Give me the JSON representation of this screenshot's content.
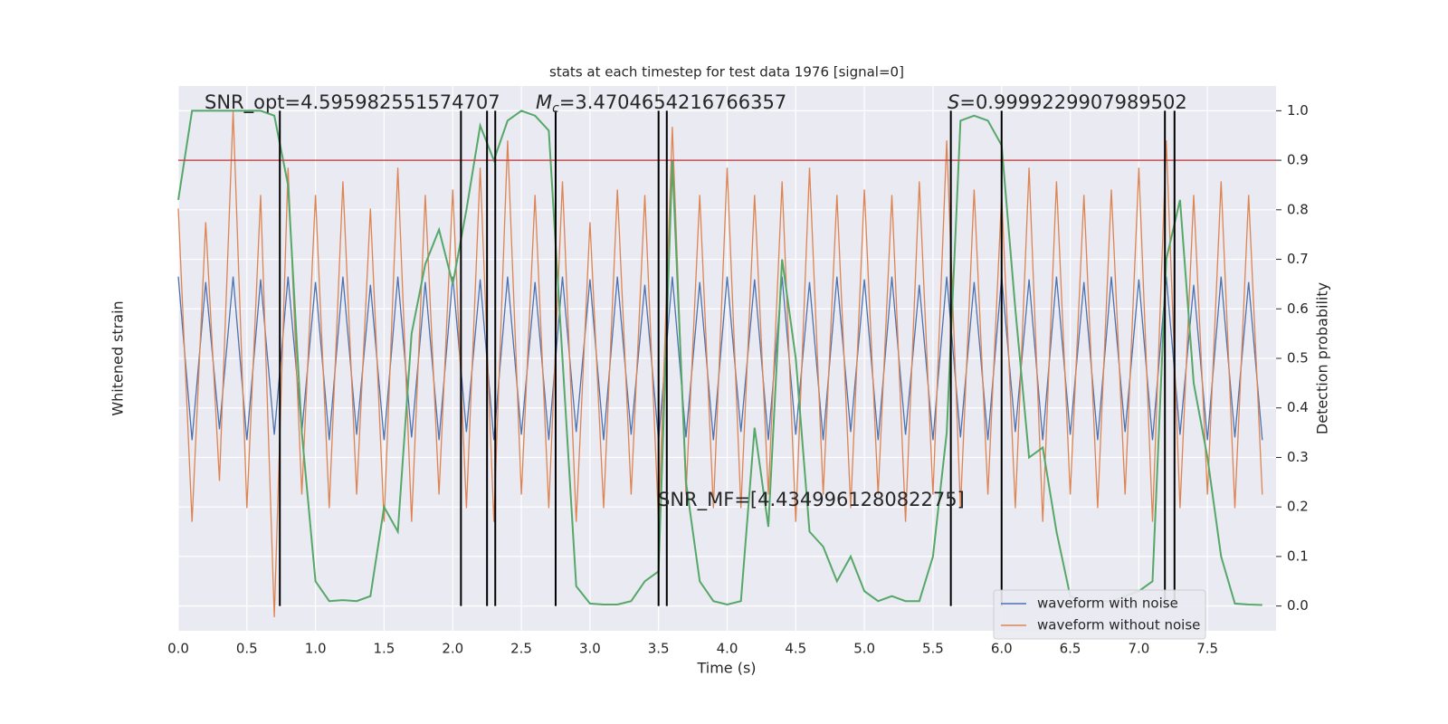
{
  "chart_data": {
    "type": "line",
    "title": "stats at each timestep for test data 1976 [signal=0]",
    "xlabel": "Time (s)",
    "ylabel": "Whitened strain",
    "y2label": "Detection probability",
    "xlim": [
      0,
      8
    ],
    "xticks": [
      {
        "value": 0,
        "label": "0.0"
      },
      0.5,
      {
        "value": 1,
        "label": "1.0"
      },
      1.5,
      {
        "value": 2,
        "label": "2.0"
      },
      2.5,
      {
        "value": 3,
        "label": "3.0"
      },
      3.5,
      {
        "value": 4,
        "label": "4.0"
      },
      4.5,
      {
        "value": 5,
        "label": "5.0"
      },
      5.5,
      {
        "value": 6,
        "label": "6.0"
      },
      6.5,
      {
        "value": 7,
        "label": "7.0"
      },
      7.5
    ],
    "ylim": [
      -1,
      1
    ],
    "y2lim": [
      -0.05,
      1.05
    ],
    "y2ticks": [
      {
        "value": 0,
        "label": "0.0"
      },
      0.1,
      0.2,
      0.3,
      0.4,
      0.5,
      0.6,
      0.7,
      0.8,
      0.9,
      {
        "value": 1,
        "label": "1.0"
      }
    ],
    "grid": true,
    "legend": "lower right",
    "x": [
      0.0,
      0.1,
      0.2,
      0.3,
      0.4,
      0.5,
      0.6,
      0.7,
      0.8,
      0.9,
      1.0,
      1.1,
      1.2,
      1.3,
      1.4,
      1.5,
      1.6,
      1.7,
      1.8,
      1.9,
      2.0,
      2.1,
      2.2,
      2.3,
      2.4,
      2.5,
      2.6,
      2.7,
      2.8,
      2.9,
      3.0,
      3.1,
      3.2,
      3.3,
      3.4,
      3.5,
      3.6,
      3.7,
      3.8,
      3.9,
      4.0,
      4.1,
      4.2,
      4.3,
      4.4,
      4.5,
      4.6,
      4.7,
      4.8,
      4.9,
      5.0,
      5.1,
      5.2,
      5.3,
      5.4,
      5.5,
      5.6,
      5.7,
      5.8,
      5.9,
      6.0,
      6.1,
      6.2,
      6.3,
      6.4,
      6.5,
      6.6,
      6.7,
      6.8,
      6.9,
      7.0,
      7.1,
      7.2,
      7.3,
      7.4,
      7.5,
      7.6,
      7.7,
      7.8,
      7.9
    ],
    "series": [
      {
        "name": "waveform with noise",
        "color": "#4c72b0",
        "values": [
          0.3,
          -0.3,
          0.28,
          -0.26,
          0.3,
          -0.3,
          0.29,
          -0.28,
          0.3,
          -0.27,
          0.28,
          -0.3,
          0.3,
          -0.28,
          0.27,
          -0.3,
          0.3,
          -0.29,
          0.28,
          -0.3,
          0.3,
          -0.27,
          0.29,
          -0.3,
          0.3,
          -0.28,
          0.28,
          -0.3,
          0.3,
          -0.27,
          0.29,
          -0.3,
          0.3,
          -0.28,
          0.27,
          -0.3,
          0.3,
          -0.29,
          0.28,
          -0.3,
          0.3,
          -0.27,
          0.29,
          -0.3,
          0.3,
          -0.28,
          0.28,
          -0.3,
          0.3,
          -0.27,
          0.29,
          -0.3,
          0.3,
          -0.28,
          0.27,
          -0.3,
          0.3,
          -0.29,
          0.28,
          -0.3,
          0.3,
          -0.27,
          0.29,
          -0.3,
          0.3,
          -0.28,
          0.28,
          -0.3,
          0.3,
          -0.27,
          0.29,
          -0.3,
          0.3,
          -0.28,
          0.27,
          -0.3,
          0.3,
          -0.29,
          0.28,
          -0.3
        ]
      },
      {
        "name": "waveform without noise",
        "color": "#dd8452",
        "values": [
          0.55,
          -0.6,
          0.5,
          -0.45,
          0.91,
          -0.55,
          0.6,
          -0.95,
          0.7,
          -0.5,
          0.6,
          -0.55,
          0.65,
          -0.5,
          0.55,
          -0.6,
          0.7,
          -0.6,
          0.6,
          -0.5,
          0.62,
          -0.55,
          0.7,
          -0.6,
          0.8,
          -0.5,
          0.6,
          -0.55,
          0.65,
          -0.6,
          0.5,
          -0.55,
          0.62,
          -0.5,
          0.6,
          -0.6,
          0.85,
          -0.5,
          0.6,
          -0.55,
          0.7,
          -0.55,
          0.6,
          -0.5,
          0.65,
          -0.6,
          0.7,
          -0.5,
          0.6,
          -0.55,
          0.62,
          -0.5,
          0.6,
          -0.6,
          0.65,
          -0.5,
          0.8,
          -0.55,
          0.62,
          -0.5,
          0.6,
          -0.55,
          0.7,
          -0.6,
          0.65,
          -0.5,
          0.6,
          -0.55,
          0.62,
          -0.5,
          0.7,
          -0.6,
          0.8,
          -0.55,
          0.6,
          -0.5,
          0.65,
          -0.55,
          0.6,
          -0.5
        ]
      },
      {
        "color": "#55a868",
        "axis": "y2",
        "values": [
          0.82,
          1.0,
          1.0,
          1.0,
          1.0,
          1.0,
          1.0,
          0.99,
          0.85,
          0.35,
          0.05,
          0.01,
          0.012,
          0.01,
          0.02,
          0.2,
          0.15,
          0.55,
          0.69,
          0.76,
          0.65,
          0.8,
          0.97,
          0.9,
          0.98,
          1.0,
          0.99,
          0.96,
          0.5,
          0.04,
          0.005,
          0.003,
          0.003,
          0.01,
          0.05,
          0.07,
          0.9,
          0.25,
          0.05,
          0.01,
          0.003,
          0.01,
          0.36,
          0.16,
          0.7,
          0.5,
          0.15,
          0.12,
          0.05,
          0.1,
          0.03,
          0.01,
          0.02,
          0.01,
          0.01,
          0.1,
          0.35,
          0.98,
          0.99,
          0.98,
          0.93,
          0.6,
          0.3,
          0.32,
          0.15,
          0.02,
          0.01,
          0.01,
          0.01,
          0.02,
          0.03,
          0.05,
          0.7,
          0.82,
          0.45,
          0.3,
          0.1,
          0.005,
          0.003,
          0.002
        ]
      }
    ],
    "hline": {
      "y": 0.9,
      "color": "#c44e52",
      "axis": "y2"
    },
    "vlines": {
      "x": [
        0.74,
        2.06,
        2.25,
        2.31,
        2.75,
        3.5,
        3.56,
        5.63,
        6.0,
        7.19,
        7.26
      ],
      "ymin": 0,
      "ymax": 1,
      "color": "#000000",
      "axis": "y2"
    },
    "annotations": [
      {
        "text": "SNR_opt=4.595982551574707"
      },
      {
        "symbol": "M",
        "subscript": "c",
        "text": "=3.4704654216766357"
      },
      {
        "symbol": "S",
        "text": "=0.9999229907989502"
      },
      {
        "text": "SNR_MF=[4.434996128082275]"
      }
    ]
  }
}
